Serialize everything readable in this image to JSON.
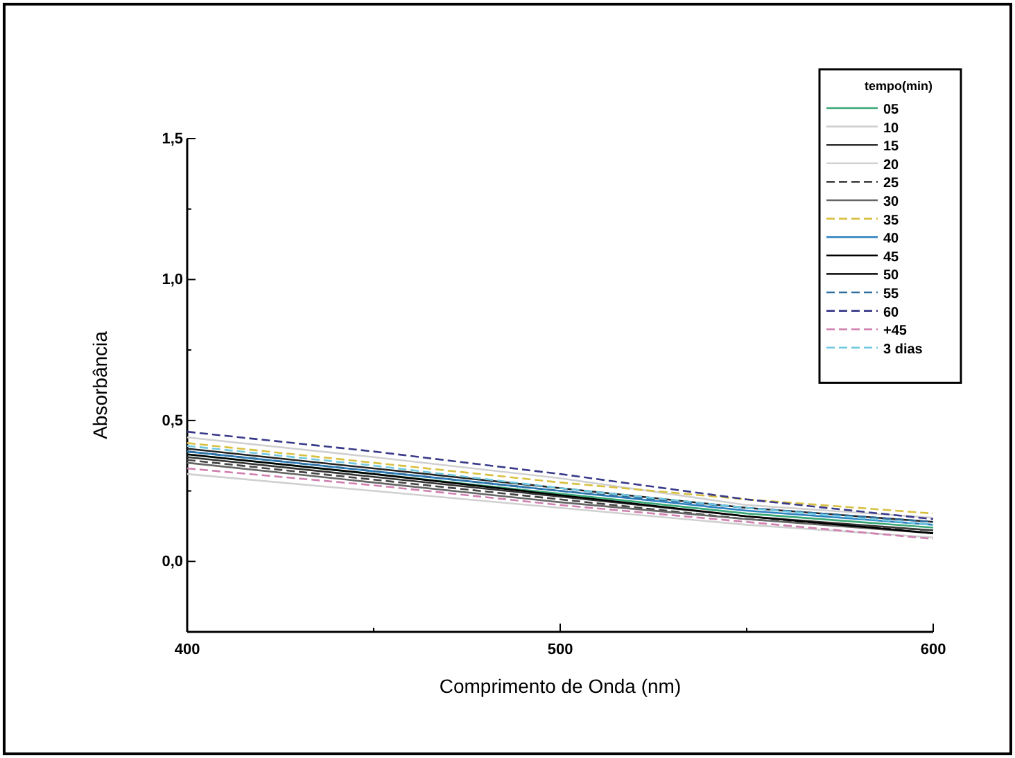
{
  "chart_data": {
    "type": "line",
    "xlabel": "Comprimento de Onda (nm)",
    "ylabel": "Absorbância",
    "legend_title": "tempo(min)",
    "legend": "top right",
    "grid": false,
    "marker": "none",
    "xlim": [
      400,
      600
    ],
    "xticks": [
      400,
      500,
      600
    ],
    "ylim": [
      -0.25,
      1.5
    ],
    "yticks": [
      {
        "value": 0,
        "label": "0,0"
      },
      {
        "value": 0.5,
        "label": "0,5"
      },
      {
        "value": 1,
        "label": "1,0"
      },
      {
        "value": 1.5,
        "label": "1,5"
      }
    ],
    "x": [
      400,
      450,
      500,
      550,
      600
    ],
    "series": [
      {
        "name": "05",
        "color": "#3aa876",
        "line_style": "solid",
        "values": [
          0.38,
          0.31,
          0.24,
          0.17,
          0.12
        ]
      },
      {
        "name": "10",
        "color": "#d0d0d0",
        "line_style": "solid",
        "values": [
          0.44,
          0.37,
          0.295,
          0.2,
          0.155
        ]
      },
      {
        "name": "15",
        "color": "#333333",
        "line_style": "solid",
        "values": [
          0.37,
          0.3,
          0.23,
          0.16,
          0.11
        ]
      },
      {
        "name": "20",
        "color": "#d0d0d0",
        "line_style": "solid",
        "values": [
          0.31,
          0.25,
          0.19,
          0.13,
          0.085
        ]
      },
      {
        "name": "25",
        "color": "#444444",
        "line_style": "dashed",
        "values": [
          0.36,
          0.29,
          0.22,
          0.15,
          0.11
        ]
      },
      {
        "name": "30",
        "color": "#666666",
        "line_style": "solid",
        "values": [
          0.35,
          0.28,
          0.21,
          0.15,
          0.1
        ]
      },
      {
        "name": "35",
        "color": "#d8c040",
        "line_style": "dashed",
        "values": [
          0.42,
          0.35,
          0.28,
          0.22,
          0.17
        ]
      },
      {
        "name": "40",
        "color": "#2a7fc0",
        "line_style": "solid",
        "values": [
          0.39,
          0.32,
          0.25,
          0.18,
          0.13
        ]
      },
      {
        "name": "45",
        "color": "#000000",
        "line_style": "solid",
        "values": [
          0.38,
          0.31,
          0.235,
          0.16,
          0.1
        ]
      },
      {
        "name": "50",
        "color": "#222222",
        "line_style": "solid",
        "values": [
          0.4,
          0.33,
          0.26,
          0.19,
          0.14
        ]
      },
      {
        "name": "55",
        "color": "#2f6f9f",
        "line_style": "dashed",
        "values": [
          0.39,
          0.32,
          0.25,
          0.19,
          0.14
        ]
      },
      {
        "name": "60",
        "color": "#3a3a8a",
        "line_style": "dashed",
        "values": [
          0.46,
          0.39,
          0.31,
          0.22,
          0.15
        ]
      },
      {
        "name": "+45",
        "color": "#d080b0",
        "line_style": "dashed",
        "values": [
          0.33,
          0.27,
          0.2,
          0.14,
          0.08
        ]
      },
      {
        "name": "3 dias",
        "color": "#70c8e0",
        "line_style": "dashed",
        "values": [
          0.41,
          0.34,
          0.26,
          0.19,
          0.13
        ]
      }
    ]
  }
}
